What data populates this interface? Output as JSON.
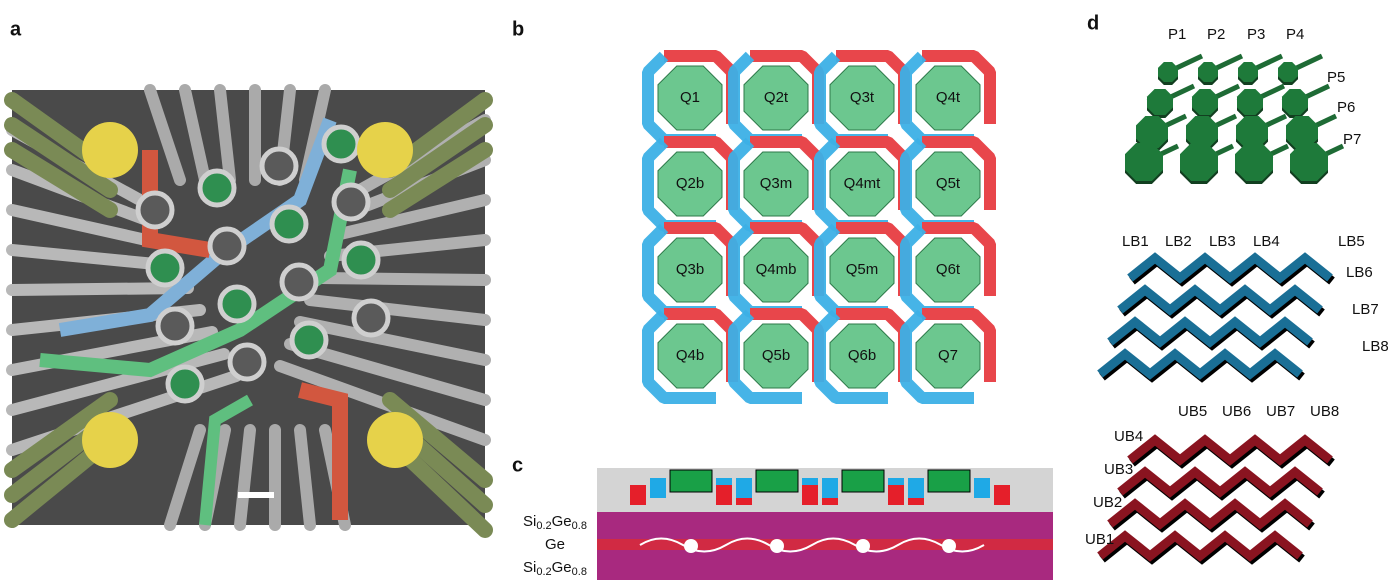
{
  "panels": {
    "a": {
      "label": "a"
    },
    "b": {
      "label": "b",
      "qubits": [
        "Q1",
        "Q2t",
        "Q3t",
        "Q4t",
        "Q2b",
        "Q3m",
        "Q4mt",
        "Q5t",
        "Q3b",
        "Q4mb",
        "Q5m",
        "Q6t",
        "Q4b",
        "Q5b",
        "Q6b",
        "Q7"
      ]
    },
    "c": {
      "label": "c",
      "top_layer": [
        "Si",
        "0.2",
        "Ge",
        "0.8"
      ],
      "well": "Ge",
      "bottom_layer": [
        "Si",
        "0.2",
        "Ge",
        "0.8"
      ]
    },
    "d": {
      "label": "d",
      "plungers": [
        "P1",
        "P2",
        "P3",
        "P4",
        "P5",
        "P6",
        "P7"
      ],
      "lower_barriers": [
        "LB1",
        "LB2",
        "LB3",
        "LB4",
        "LB5",
        "LB6",
        "LB7",
        "LB8"
      ],
      "upper_barriers": [
        "UB1",
        "UB2",
        "UB3",
        "UB4",
        "UB5",
        "UB6",
        "UB7",
        "UB8"
      ]
    }
  }
}
